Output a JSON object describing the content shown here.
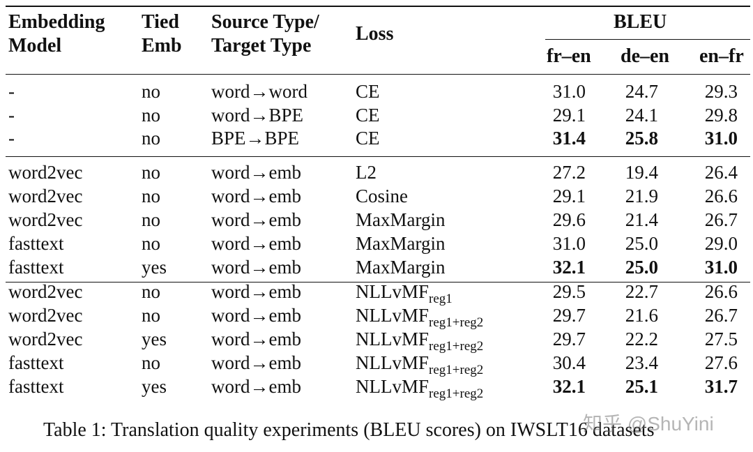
{
  "headers": {
    "embedding_model": [
      "Embedding",
      "Model"
    ],
    "tied_emb": [
      "Tied",
      "Emb"
    ],
    "source_target": [
      "Source Type/",
      "Target Type"
    ],
    "loss": "Loss",
    "bleu": "BLEU",
    "bleu_cols": [
      "fr–en",
      "de–en",
      "en–fr"
    ]
  },
  "rows": [
    {
      "model": "-",
      "tied": "no",
      "type": "word→word",
      "loss": "CE",
      "loss_sub": "",
      "scores": [
        "31.0",
        "24.7",
        "29.3"
      ],
      "bold": [
        false,
        false,
        false
      ]
    },
    {
      "model": "-",
      "tied": "no",
      "type": "word→BPE",
      "loss": "CE",
      "loss_sub": "",
      "scores": [
        "29.1",
        "24.1",
        "29.8"
      ],
      "bold": [
        false,
        false,
        false
      ]
    },
    {
      "model": "-",
      "tied": "no",
      "type": "BPE→BPE",
      "loss": "CE",
      "loss_sub": "",
      "scores": [
        "31.4",
        "25.8",
        "31.0"
      ],
      "bold": [
        true,
        true,
        true
      ]
    },
    {
      "model": "word2vec",
      "tied": "no",
      "type": "word→emb",
      "loss": "L2",
      "loss_sub": "",
      "scores": [
        "27.2",
        "19.4",
        "26.4"
      ],
      "bold": [
        false,
        false,
        false
      ]
    },
    {
      "model": "word2vec",
      "tied": "no",
      "type": "word→emb",
      "loss": "Cosine",
      "loss_sub": "",
      "scores": [
        "29.1",
        "21.9",
        "26.6"
      ],
      "bold": [
        false,
        false,
        false
      ]
    },
    {
      "model": "word2vec",
      "tied": "no",
      "type": "word→emb",
      "loss": "MaxMargin",
      "loss_sub": "",
      "scores": [
        "29.6",
        "21.4",
        "26.7"
      ],
      "bold": [
        false,
        false,
        false
      ]
    },
    {
      "model": "fasttext",
      "tied": "no",
      "type": "word→emb",
      "loss": "MaxMargin",
      "loss_sub": "",
      "scores": [
        "31.0",
        "25.0",
        "29.0"
      ],
      "bold": [
        false,
        false,
        false
      ]
    },
    {
      "model": "fasttext",
      "tied": "yes",
      "type": "word→emb",
      "loss": "MaxMargin",
      "loss_sub": "",
      "scores": [
        "32.1",
        "25.0",
        "31.0"
      ],
      "bold": [
        true,
        true,
        true
      ]
    },
    {
      "model": "word2vec",
      "tied": "no",
      "type": "word→emb",
      "loss": "NLLvMF",
      "loss_sub": "reg1",
      "scores": [
        "29.5",
        "22.7",
        "26.6"
      ],
      "bold": [
        false,
        false,
        false
      ]
    },
    {
      "model": "word2vec",
      "tied": "no",
      "type": "word→emb",
      "loss": "NLLvMF",
      "loss_sub": "reg1+reg2",
      "scores": [
        "29.7",
        "21.6",
        "26.7"
      ],
      "bold": [
        false,
        false,
        false
      ]
    },
    {
      "model": "word2vec",
      "tied": "yes",
      "type": "word→emb",
      "loss": "NLLvMF",
      "loss_sub": "reg1+reg2",
      "scores": [
        "29.7",
        "22.2",
        "27.5"
      ],
      "bold": [
        false,
        false,
        false
      ]
    },
    {
      "model": "fasttext",
      "tied": "no",
      "type": "word→emb",
      "loss": "NLLvMF",
      "loss_sub": "reg1+reg2",
      "scores": [
        "30.4",
        "23.4",
        "27.6"
      ],
      "bold": [
        false,
        false,
        false
      ]
    },
    {
      "model": "fasttext",
      "tied": "yes",
      "type": "word→emb",
      "loss": "NLLvMF",
      "loss_sub": "reg1+reg2",
      "scores": [
        "32.1",
        "25.1",
        "31.7"
      ],
      "bold": [
        true,
        true,
        true
      ]
    }
  ],
  "caption": "Table 1: Translation quality experiments (BLEU scores) on IWSLT16 datasets",
  "watermark": "知乎 @ShuYini"
}
